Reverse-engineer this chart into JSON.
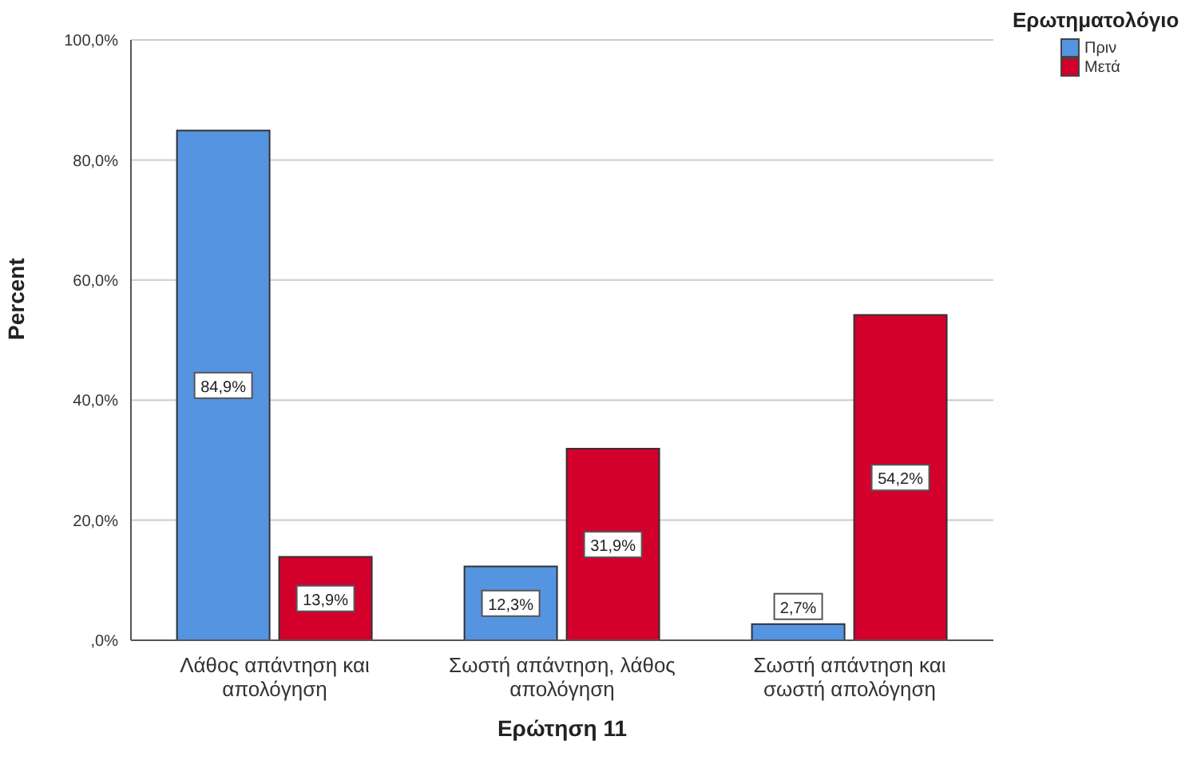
{
  "chart_data": {
    "type": "bar",
    "xlabel": "Ερώτηση 11",
    "ylabel": "Percent",
    "legend_title": "Ερωτηματολόγιο",
    "categories": [
      "Λάθος απάντηση και απολόγηση",
      "Σωστή απάντηση, λάθος απολόγηση",
      "Σωστή απάντηση και σωστή απολόγηση"
    ],
    "series": [
      {
        "name": "Πριν",
        "color": "#5594e1",
        "values": [
          84.9,
          12.3,
          2.7
        ],
        "value_labels": [
          "84,9%",
          "12,3%",
          "2,7%"
        ]
      },
      {
        "name": "Μετά",
        "color": "#d3002c",
        "values": [
          13.9,
          31.9,
          54.2
        ],
        "value_labels": [
          "13,9%",
          "31,9%",
          "54,2%"
        ]
      }
    ],
    "ylim": [
      0,
      100
    ],
    "yticks": [
      {
        "value": 0,
        "label": ",0%"
      },
      {
        "value": 20,
        "label": "20,0%"
      },
      {
        "value": 40,
        "label": "40,0%"
      },
      {
        "value": 60,
        "label": "60,0%"
      },
      {
        "value": 80,
        "label": "80,0%"
      },
      {
        "value": 100,
        "label": "100,0%"
      }
    ],
    "grid": "y",
    "legend": "top right"
  }
}
